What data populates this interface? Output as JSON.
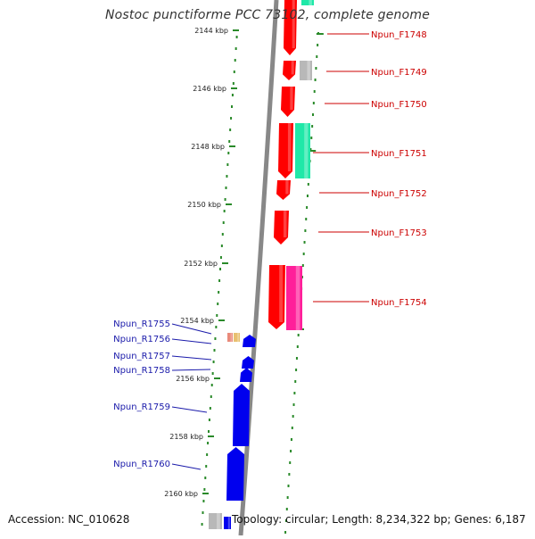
{
  "title": "Nostoc punctiforme PCC 73102, complete genome",
  "footer": {
    "accession": "Accession: NC_010628",
    "summary": "Topology: circular; Length: 8,234,322 bp; Genes: 6,187"
  },
  "colors": {
    "forward_label": "#cc0000",
    "reverse_label": "#1a1aaa",
    "tick": "#2a8a2a",
    "backbone": "#888888"
  },
  "ticks": [
    {
      "label": "2144 kbp",
      "kbp": 2144
    },
    {
      "label": "2146 kbp",
      "kbp": 2146
    },
    {
      "label": "2148 kbp",
      "kbp": 2148
    },
    {
      "label": "2150 kbp",
      "kbp": 2150
    },
    {
      "label": "2152 kbp",
      "kbp": 2152
    },
    {
      "label": "2154 kbp",
      "kbp": 2154
    },
    {
      "label": "2156 kbp",
      "kbp": 2156
    },
    {
      "label": "2158 kbp",
      "kbp": 2158
    },
    {
      "label": "2160 kbp",
      "kbp": 2160
    }
  ],
  "forward_labels": [
    "Npun_F1748",
    "Npun_F1749",
    "Npun_F1750",
    "Npun_F1751",
    "Npun_F1752",
    "Npun_F1753",
    "Npun_F1754"
  ],
  "reverse_labels": [
    "Npun_R1755",
    "Npun_R1756",
    "Npun_R1757",
    "Npun_R1758",
    "Npun_R1759",
    "Npun_R1760"
  ],
  "feature_colors": {
    "cds_forward": "#ff0000",
    "cds_reverse": "#0000ee",
    "other_grey": "#b8b8b8",
    "cyan_feature": "#1fe8a8",
    "magenta_feature": "#ff1f9a",
    "trna": "#e98a7a"
  }
}
